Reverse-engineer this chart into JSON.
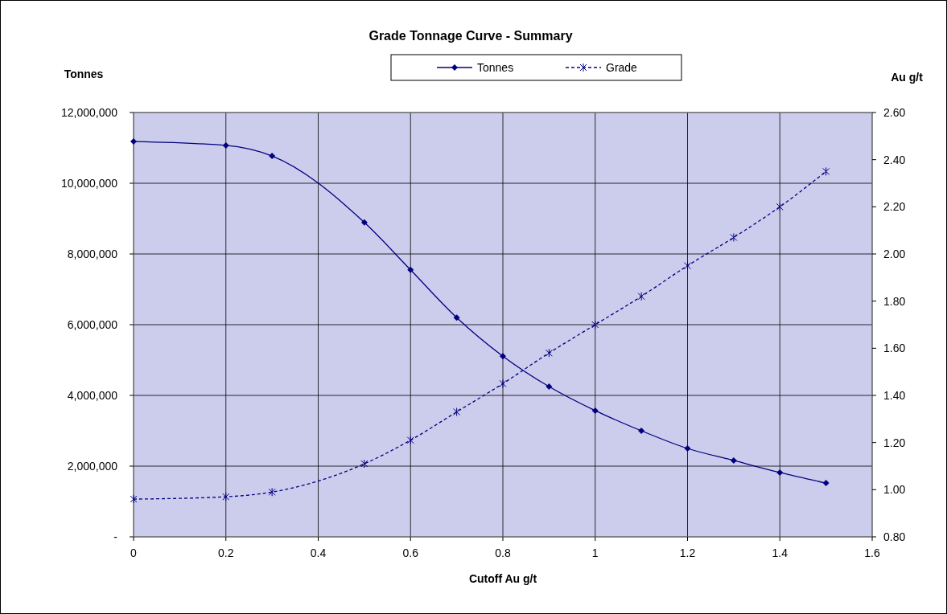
{
  "chart_data": {
    "type": "line",
    "title": "Grade Tonnage Curve - Summary",
    "xlabel": "Cutoff Au g/t",
    "ylabel": "Tonnes",
    "y2label": "Au g/t",
    "x": [
      0,
      0.2,
      0.3,
      0.5,
      0.6,
      0.7,
      0.8,
      0.9,
      1,
      1.1,
      1.2,
      1.3,
      1.4,
      1.5
    ],
    "series": [
      {
        "name": "Tonnes",
        "color": "#000080",
        "marker": "diamond",
        "line_style": "solid",
        "values": [
          11180000,
          11070000,
          10770000,
          8890000,
          7550000,
          6200000,
          5110000,
          4250000,
          3570000,
          3000000,
          2500000,
          2160000,
          1820000,
          1520000
        ]
      },
      {
        "name": "Grade",
        "color": "#000080",
        "marker": "cross",
        "line_style": "dashed",
        "axis": "y2",
        "values": [
          0.96,
          0.97,
          0.99,
          1.11,
          1.21,
          1.33,
          1.45,
          1.58,
          1.7,
          1.82,
          1.95,
          2.07,
          2.2,
          2.35
        ]
      }
    ],
    "xlim": [
      0,
      1.6
    ],
    "xticks": [
      0,
      0.2,
      0.4,
      0.6,
      0.8,
      1,
      1.2,
      1.4,
      1.6
    ],
    "ylim": [
      0,
      12000000
    ],
    "yticks": [
      {
        "value": 0,
        "label": "-"
      },
      {
        "value": 2000000,
        "label": "2,000,000"
      },
      {
        "value": 4000000,
        "label": "4,000,000"
      },
      {
        "value": 6000000,
        "label": "6,000,000"
      },
      {
        "value": 8000000,
        "label": "8,000,000"
      },
      {
        "value": 10000000,
        "label": "10,000,000"
      },
      {
        "value": 12000000,
        "label": "12,000,000"
      }
    ],
    "y2lim": [
      0.8,
      2.6
    ],
    "y2ticks": [
      {
        "value": 0.8,
        "label": "0.80"
      },
      {
        "value": 1,
        "label": "1.00"
      },
      {
        "value": 1.2,
        "label": "1.20"
      },
      {
        "value": 1.4,
        "label": "1.40"
      },
      {
        "value": 1.6,
        "label": "1.60"
      },
      {
        "value": 1.8,
        "label": "1.80"
      },
      {
        "value": 2,
        "label": "2.00"
      },
      {
        "value": 2.2,
        "label": "2.20"
      },
      {
        "value": 2.4,
        "label": "2.40"
      },
      {
        "value": 2.6,
        "label": "2.60"
      }
    ],
    "grid": true,
    "legend": "top"
  }
}
